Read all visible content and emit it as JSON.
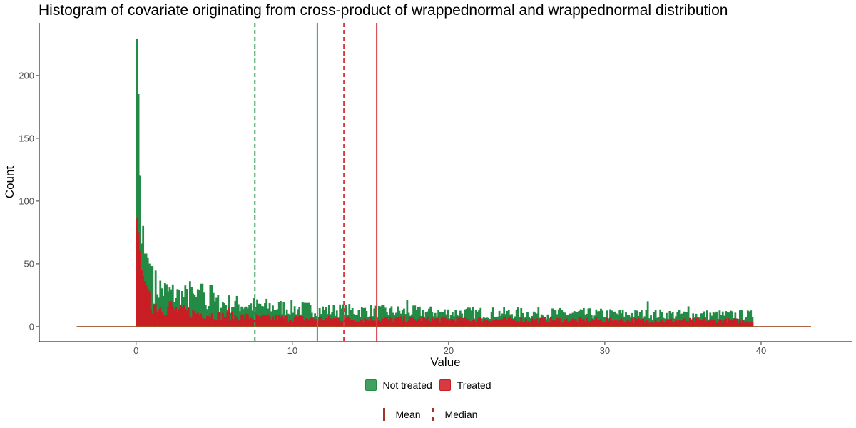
{
  "chart_data": {
    "type": "histogram",
    "title": "Histogram of covariate originating from cross-product of wrappednormal and wrappednormal distribution",
    "xlabel": "Value",
    "ylabel": "Count",
    "xlim": [
      -6.2,
      45.8
    ],
    "ylim": [
      -12,
      242
    ],
    "x_ticks": [
      0,
      10,
      20,
      30,
      40
    ],
    "y_ticks": [
      0,
      50,
      100,
      150,
      200
    ],
    "bin_width": 0.1,
    "range": [
      -3.8,
      43.2
    ],
    "data_range": [
      0,
      39.5
    ],
    "series": [
      {
        "name": "Not treated",
        "color": "#238b45",
        "fill": "#41a05f",
        "mean": 11.6,
        "median": 7.6,
        "peaks": [
          229,
          185,
          120,
          88,
          80,
          64,
          58,
          55,
          50,
          48,
          45
        ],
        "envelope": [
          [
            0.2,
            68
          ],
          [
            0.5,
            45
          ],
          [
            1.0,
            34
          ],
          [
            2.0,
            27
          ],
          [
            3.0,
            24
          ],
          [
            5.0,
            19
          ],
          [
            8.0,
            16
          ],
          [
            12.0,
            13
          ],
          [
            20.0,
            11
          ],
          [
            30.0,
            10
          ],
          [
            39.5,
            9
          ]
        ],
        "spikes": [
          [
            0.35,
            66
          ],
          [
            0.6,
            58
          ],
          [
            1.1,
            48
          ],
          [
            3.5,
            36
          ],
          [
            4.2,
            34
          ],
          [
            4.8,
            33
          ],
          [
            17.4,
            21
          ],
          [
            22.3,
            21
          ],
          [
            32.7,
            20
          ],
          [
            35.4,
            16
          ]
        ]
      },
      {
        "name": "Treated",
        "color": "#c81e24",
        "fill": "#d83b3f",
        "mean": 15.4,
        "median": 13.3,
        "peaks": [
          86,
          75,
          60,
          45,
          40,
          36,
          33,
          30,
          28
        ],
        "envelope": [
          [
            0.2,
            34
          ],
          [
            0.5,
            24
          ],
          [
            1.0,
            18
          ],
          [
            2.0,
            14
          ],
          [
            3.0,
            12
          ],
          [
            5.0,
            9
          ],
          [
            8.0,
            7
          ],
          [
            12.0,
            6
          ],
          [
            20.0,
            5.5
          ],
          [
            30.0,
            5
          ],
          [
            39.5,
            4.5
          ]
        ],
        "spikes": [
          [
            2.2,
            20
          ],
          [
            4.9,
            17
          ],
          [
            6.0,
            15
          ]
        ]
      }
    ],
    "legend": {
      "fill_items": [
        "Not treated",
        "Treated"
      ],
      "line_items": [
        {
          "label": "Mean",
          "style": "solid"
        },
        {
          "label": "Median",
          "style": "dashed"
        }
      ],
      "line_key_color": "#a0362a",
      "placement": "bottom"
    }
  }
}
